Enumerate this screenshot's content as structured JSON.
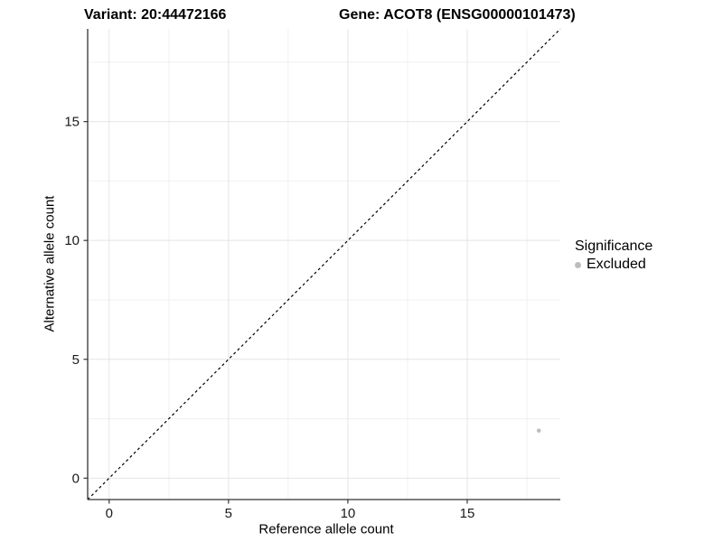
{
  "header": {
    "title_left": "Variant: 20:44472166",
    "title_right": "Gene: ACOT8 (ENSG00000101473)"
  },
  "legend": {
    "title": "Significance",
    "entries": [
      {
        "label": "Excluded",
        "color": "#bdbdbd"
      }
    ]
  },
  "chart_data": {
    "type": "scatter",
    "title": "Variant: 20:44472166 | Gene: ACOT8 (ENSG00000101473)",
    "xlabel": "Reference allele count",
    "ylabel": "Alternative allele count",
    "xlim": [
      -0.9,
      18.9
    ],
    "ylim": [
      -0.9,
      18.9
    ],
    "xticks": [
      0,
      5,
      10,
      15
    ],
    "yticks": [
      0,
      5,
      10,
      15
    ],
    "x_minor_ticks": [
      2.5,
      7.5,
      12.5,
      17.5
    ],
    "y_minor_ticks": [
      2.5,
      7.5,
      12.5,
      17.5
    ],
    "grid": true,
    "legend_position": "right",
    "reference_line": {
      "type": "identity",
      "style": "dashed",
      "color": "#000000"
    },
    "series": [
      {
        "name": "Excluded",
        "color": "#bdbdbd",
        "points": [
          {
            "x": 18,
            "y": 2
          }
        ]
      }
    ]
  },
  "colors": {
    "background": "#ffffff",
    "grid_major": "#e4e4e4",
    "grid_minor": "#f1f1f1",
    "axis_line": "#333333",
    "tick_label": "#1a1a1a",
    "point": "#bdbdbd",
    "dashed_line": "#000000"
  }
}
